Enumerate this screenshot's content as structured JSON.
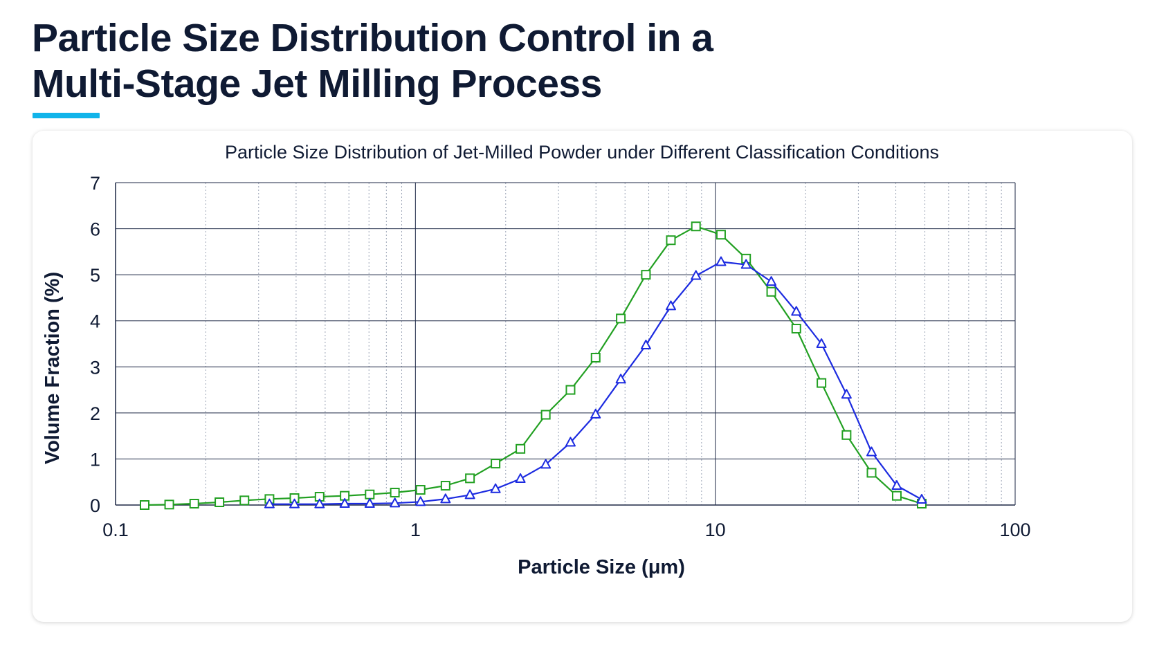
{
  "page": {
    "title_line1": "Particle Size Distribution Control in a",
    "title_line2": "Multi-Stage Jet Milling Process"
  },
  "colors": {
    "title": "#0f1a33",
    "accent": "#11b4ea",
    "grid_major": "#1c2744",
    "grid_minor": "#9aa3b5",
    "series_green": "#22a022",
    "series_blue": "#1c2be0"
  },
  "chart_data": {
    "type": "line",
    "title": "Particle Size Distribution of Jet-Milled Powder under Different Classification Conditions",
    "xlabel": "Particle Size (μm)",
    "ylabel": "Volume Fraction (%)",
    "x_scale": "log",
    "xlim": [
      0.1,
      100
    ],
    "ylim": [
      0,
      7
    ],
    "x_ticks": [
      0.1,
      1,
      10,
      100
    ],
    "x_tick_labels": [
      "0.1",
      "1",
      "10",
      "100"
    ],
    "y_ticks": [
      0,
      1,
      2,
      3,
      4,
      5,
      6,
      7
    ],
    "y_tick_labels": [
      "0",
      "1",
      "2",
      "3",
      "4",
      "5",
      "6",
      "7"
    ],
    "grid": true,
    "legend": "none",
    "series": [
      {
        "marker": "square",
        "color": "#22a022",
        "points": [
          [
            0.125,
            0.0
          ],
          [
            0.151,
            0.01
          ],
          [
            0.183,
            0.03
          ],
          [
            0.222,
            0.06
          ],
          [
            0.269,
            0.1
          ],
          [
            0.326,
            0.13
          ],
          [
            0.395,
            0.15
          ],
          [
            0.479,
            0.18
          ],
          [
            0.581,
            0.2
          ],
          [
            0.704,
            0.23
          ],
          [
            0.854,
            0.27
          ],
          [
            1.04,
            0.33
          ],
          [
            1.26,
            0.42
          ],
          [
            1.52,
            0.58
          ],
          [
            1.85,
            0.9
          ],
          [
            2.24,
            1.22
          ],
          [
            2.72,
            1.96
          ],
          [
            3.29,
            2.5
          ],
          [
            3.99,
            3.2
          ],
          [
            4.84,
            4.05
          ],
          [
            5.87,
            5.0
          ],
          [
            7.11,
            5.75
          ],
          [
            8.62,
            6.05
          ],
          [
            10.45,
            5.87
          ],
          [
            12.67,
            5.35
          ],
          [
            15.37,
            4.63
          ],
          [
            18.63,
            3.83
          ],
          [
            22.6,
            2.65
          ],
          [
            27.4,
            1.52
          ],
          [
            33.2,
            0.7
          ],
          [
            40.3,
            0.2
          ],
          [
            48.8,
            0.03
          ]
        ]
      },
      {
        "marker": "triangle",
        "color": "#1c2be0",
        "points": [
          [
            0.326,
            0.02
          ],
          [
            0.395,
            0.02
          ],
          [
            0.479,
            0.02
          ],
          [
            0.581,
            0.03
          ],
          [
            0.704,
            0.03
          ],
          [
            0.854,
            0.04
          ],
          [
            1.04,
            0.07
          ],
          [
            1.26,
            0.13
          ],
          [
            1.52,
            0.22
          ],
          [
            1.85,
            0.35
          ],
          [
            2.24,
            0.57
          ],
          [
            2.72,
            0.88
          ],
          [
            3.29,
            1.36
          ],
          [
            3.99,
            1.97
          ],
          [
            4.84,
            2.73
          ],
          [
            5.87,
            3.47
          ],
          [
            7.11,
            4.32
          ],
          [
            8.62,
            4.98
          ],
          [
            10.45,
            5.28
          ],
          [
            12.67,
            5.22
          ],
          [
            15.37,
            4.85
          ],
          [
            18.63,
            4.2
          ],
          [
            22.6,
            3.5
          ],
          [
            27.4,
            2.4
          ],
          [
            33.2,
            1.15
          ],
          [
            40.3,
            0.42
          ],
          [
            48.8,
            0.12
          ]
        ]
      }
    ]
  }
}
